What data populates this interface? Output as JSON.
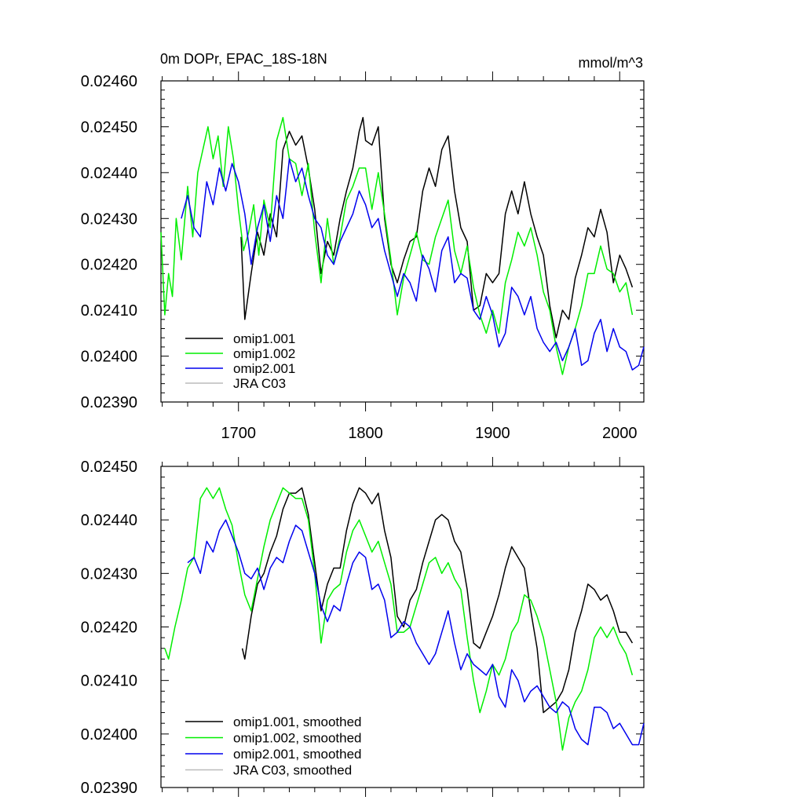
{
  "figure": {
    "title_left": "0m DOPr, EPAC_18S-18N",
    "title_right": "mmol/m^3"
  },
  "chart_data": [
    {
      "type": "line",
      "title": "0m DOPr, EPAC_18S-18N",
      "units": "mmol/m^3",
      "xlim": [
        1639,
        2019
      ],
      "ylim": [
        0.0239,
        0.0246
      ],
      "xticks": [
        1700,
        1800,
        1900,
        2000
      ],
      "xtick_labels": [
        "1700",
        "1800",
        "1900",
        "2000"
      ],
      "yticks": [
        0.0239,
        0.024,
        0.0241,
        0.0242,
        0.0243,
        0.0244,
        0.0245,
        0.0246
      ],
      "ytick_labels": [
        "0.02390",
        "0.02400",
        "0.02410",
        "0.02420",
        "0.02430",
        "0.02440",
        "0.02450",
        "0.02460"
      ],
      "legend_position": "bottom-left",
      "series": [
        {
          "name": "omip1.001",
          "color": "#000000",
          "x": [
            1702,
            1705,
            1710,
            1715,
            1720,
            1725,
            1730,
            1735,
            1740,
            1745,
            1750,
            1755,
            1760,
            1765,
            1770,
            1775,
            1780,
            1785,
            1790,
            1795,
            1798,
            1800,
            1805,
            1810,
            1815,
            1820,
            1825,
            1830,
            1835,
            1840,
            1845,
            1850,
            1855,
            1860,
            1865,
            1870,
            1875,
            1880,
            1885,
            1890,
            1895,
            1900,
            1905,
            1910,
            1915,
            1920,
            1925,
            1930,
            1935,
            1940,
            1945,
            1950,
            1955,
            1960,
            1965,
            1970,
            1975,
            1980,
            1985,
            1990,
            1995,
            2000,
            2005,
            2010
          ],
          "y": [
            0.02426,
            0.02408,
            0.02418,
            0.02427,
            0.02422,
            0.02431,
            0.02426,
            0.02445,
            0.02449,
            0.02446,
            0.02448,
            0.02441,
            0.02432,
            0.02418,
            0.02425,
            0.02422,
            0.0243,
            0.02436,
            0.02441,
            0.02449,
            0.02452,
            0.02447,
            0.02446,
            0.0245,
            0.0243,
            0.0242,
            0.02416,
            0.02421,
            0.02425,
            0.02426,
            0.02436,
            0.02441,
            0.02437,
            0.02445,
            0.02448,
            0.02436,
            0.02428,
            0.02425,
            0.0241,
            0.02411,
            0.02418,
            0.02416,
            0.02418,
            0.02431,
            0.02436,
            0.02431,
            0.02438,
            0.02431,
            0.02426,
            0.02422,
            0.02411,
            0.02404,
            0.0241,
            0.02408,
            0.02417,
            0.02422,
            0.02428,
            0.02426,
            0.02432,
            0.02427,
            0.02416,
            0.02422,
            0.02419,
            0.02415
          ]
        },
        {
          "name": "omip1.002",
          "color": "#00ee00",
          "x": [
            1639,
            1642,
            1645,
            1648,
            1651,
            1655,
            1660,
            1664,
            1668,
            1672,
            1676,
            1680,
            1684,
            1688,
            1692,
            1696,
            1700,
            1704,
            1708,
            1712,
            1716,
            1720,
            1725,
            1730,
            1735,
            1740,
            1745,
            1750,
            1755,
            1760,
            1765,
            1770,
            1775,
            1780,
            1785,
            1790,
            1795,
            1800,
            1805,
            1810,
            1815,
            1820,
            1825,
            1830,
            1835,
            1840,
            1845,
            1850,
            1855,
            1860,
            1865,
            1870,
            1875,
            1880,
            1885,
            1890,
            1895,
            1900,
            1905,
            1910,
            1915,
            1920,
            1925,
            1930,
            1935,
            1940,
            1945,
            1950,
            1955,
            1960,
            1965,
            1970,
            1975,
            1980,
            1985,
            1990,
            1995,
            2000,
            2005,
            2010
          ],
          "y": [
            0.02427,
            0.02409,
            0.02418,
            0.02413,
            0.0243,
            0.02421,
            0.02437,
            0.02426,
            0.0244,
            0.02445,
            0.0245,
            0.02443,
            0.02448,
            0.02437,
            0.0245,
            0.02443,
            0.02432,
            0.02423,
            0.02427,
            0.02433,
            0.02422,
            0.02434,
            0.02428,
            0.02447,
            0.02452,
            0.02443,
            0.02442,
            0.02435,
            0.02442,
            0.02427,
            0.02416,
            0.0243,
            0.0242,
            0.02426,
            0.02434,
            0.02437,
            0.02441,
            0.02441,
            0.02432,
            0.0244,
            0.02431,
            0.02421,
            0.02409,
            0.02417,
            0.02422,
            0.02427,
            0.02421,
            0.0242,
            0.02426,
            0.0243,
            0.02434,
            0.02423,
            0.02418,
            0.02424,
            0.02415,
            0.02409,
            0.02405,
            0.0241,
            0.02405,
            0.02416,
            0.02421,
            0.02427,
            0.02424,
            0.02428,
            0.02422,
            0.02414,
            0.0241,
            0.02402,
            0.02396,
            0.02402,
            0.02406,
            0.02411,
            0.02418,
            0.02418,
            0.02424,
            0.02419,
            0.02418,
            0.02414,
            0.02416,
            0.02409
          ]
        },
        {
          "name": "omip2.001",
          "color": "#0000ee",
          "x": [
            1655,
            1660,
            1665,
            1670,
            1675,
            1680,
            1685,
            1690,
            1695,
            1700,
            1705,
            1710,
            1715,
            1720,
            1725,
            1730,
            1735,
            1740,
            1745,
            1750,
            1755,
            1760,
            1765,
            1770,
            1775,
            1780,
            1785,
            1790,
            1795,
            1800,
            1805,
            1810,
            1815,
            1820,
            1825,
            1830,
            1835,
            1840,
            1845,
            1850,
            1855,
            1860,
            1865,
            1870,
            1875,
            1880,
            1885,
            1890,
            1895,
            1900,
            1905,
            1910,
            1915,
            1920,
            1925,
            1930,
            1935,
            1940,
            1945,
            1950,
            1955,
            1960,
            1965,
            1970,
            1975,
            1980,
            1985,
            1990,
            1995,
            2000,
            2005,
            2010,
            2015,
            2019
          ],
          "y": [
            0.0243,
            0.02435,
            0.02428,
            0.02426,
            0.02438,
            0.02433,
            0.02441,
            0.02436,
            0.02442,
            0.02438,
            0.02431,
            0.0242,
            0.02428,
            0.02433,
            0.02425,
            0.02435,
            0.0243,
            0.02443,
            0.02438,
            0.02441,
            0.02435,
            0.0243,
            0.02428,
            0.02422,
            0.0242,
            0.02425,
            0.02428,
            0.02431,
            0.02436,
            0.02433,
            0.02428,
            0.0243,
            0.02423,
            0.02418,
            0.02413,
            0.02418,
            0.02416,
            0.02412,
            0.02422,
            0.02419,
            0.02414,
            0.02423,
            0.02426,
            0.02416,
            0.02418,
            0.02417,
            0.0241,
            0.02408,
            0.02413,
            0.02409,
            0.02402,
            0.02405,
            0.02415,
            0.02413,
            0.02409,
            0.02413,
            0.02406,
            0.02403,
            0.02401,
            0.02403,
            0.02399,
            0.02402,
            0.02406,
            0.02398,
            0.02399,
            0.02405,
            0.02408,
            0.02401,
            0.02406,
            0.02402,
            0.02401,
            0.02397,
            0.02398,
            0.02402
          ]
        },
        {
          "name": "JRA C03",
          "color": "#bbbbbb",
          "x": [],
          "y": []
        }
      ]
    },
    {
      "type": "line",
      "xlim": [
        1639,
        2019
      ],
      "ylim": [
        0.0239,
        0.0245
      ],
      "yticks": [
        0.0239,
        0.024,
        0.0241,
        0.0242,
        0.0243,
        0.0244,
        0.0245
      ],
      "ytick_labels": [
        "0.02390",
        "0.02400",
        "0.02410",
        "0.02420",
        "0.02430",
        "0.02440",
        "0.02450"
      ],
      "legend_position": "bottom-left",
      "series": [
        {
          "name": "omip1.001, smoothed",
          "color": "#000000",
          "x": [
            1703,
            1705,
            1710,
            1715,
            1720,
            1725,
            1730,
            1735,
            1740,
            1745,
            1750,
            1755,
            1760,
            1765,
            1770,
            1775,
            1780,
            1785,
            1790,
            1795,
            1800,
            1805,
            1810,
            1815,
            1820,
            1825,
            1830,
            1835,
            1840,
            1845,
            1850,
            1855,
            1860,
            1865,
            1870,
            1875,
            1880,
            1885,
            1890,
            1895,
            1900,
            1905,
            1910,
            1915,
            1920,
            1925,
            1930,
            1935,
            1940,
            1945,
            1950,
            1955,
            1960,
            1965,
            1970,
            1975,
            1980,
            1985,
            1990,
            1995,
            2000,
            2005,
            2010
          ],
          "y": [
            0.02416,
            0.02414,
            0.02422,
            0.02428,
            0.0243,
            0.02434,
            0.02437,
            0.02442,
            0.02445,
            0.02445,
            0.02446,
            0.02441,
            0.02432,
            0.02423,
            0.02428,
            0.02431,
            0.02431,
            0.02438,
            0.02443,
            0.02446,
            0.02445,
            0.02443,
            0.02445,
            0.02438,
            0.02433,
            0.02422,
            0.0242,
            0.02425,
            0.02427,
            0.02432,
            0.02436,
            0.0244,
            0.02441,
            0.0244,
            0.02436,
            0.02434,
            0.02427,
            0.02417,
            0.02416,
            0.02419,
            0.02422,
            0.02426,
            0.02431,
            0.02435,
            0.02433,
            0.02431,
            0.02423,
            0.02416,
            0.02404,
            0.02405,
            0.02406,
            0.02408,
            0.02412,
            0.02419,
            0.02423,
            0.02428,
            0.02427,
            0.02425,
            0.02426,
            0.02423,
            0.02419,
            0.02419,
            0.02417
          ]
        },
        {
          "name": "omip1.002, smoothed",
          "color": "#00ee00",
          "x": [
            1642,
            1645,
            1650,
            1655,
            1660,
            1665,
            1670,
            1675,
            1680,
            1685,
            1690,
            1695,
            1700,
            1705,
            1710,
            1715,
            1720,
            1725,
            1730,
            1735,
            1740,
            1745,
            1750,
            1755,
            1760,
            1765,
            1770,
            1775,
            1780,
            1785,
            1790,
            1795,
            1800,
            1805,
            1810,
            1815,
            1820,
            1825,
            1830,
            1835,
            1840,
            1845,
            1850,
            1855,
            1860,
            1865,
            1870,
            1875,
            1880,
            1885,
            1890,
            1895,
            1900,
            1905,
            1910,
            1915,
            1920,
            1925,
            1930,
            1935,
            1940,
            1945,
            1950,
            1955,
            1960,
            1965,
            1970,
            1975,
            1980,
            1985,
            1990,
            1995,
            2000,
            2005,
            2010
          ],
          "y": [
            0.02416,
            0.02414,
            0.0242,
            0.02425,
            0.02431,
            0.02433,
            0.02444,
            0.02446,
            0.02444,
            0.02446,
            0.02442,
            0.02439,
            0.02432,
            0.02426,
            0.02423,
            0.02429,
            0.02435,
            0.0244,
            0.02443,
            0.02446,
            0.02445,
            0.02444,
            0.02444,
            0.0244,
            0.0243,
            0.02417,
            0.02425,
            0.02427,
            0.02428,
            0.02434,
            0.02438,
            0.0244,
            0.02437,
            0.02434,
            0.02436,
            0.02432,
            0.02428,
            0.02419,
            0.02419,
            0.0242,
            0.02424,
            0.02428,
            0.02432,
            0.02433,
            0.0243,
            0.02432,
            0.02429,
            0.02427,
            0.02418,
            0.0241,
            0.02404,
            0.02408,
            0.02413,
            0.02411,
            0.02414,
            0.02419,
            0.02421,
            0.02426,
            0.02425,
            0.02422,
            0.02418,
            0.02412,
            0.02406,
            0.02397,
            0.02403,
            0.02406,
            0.02408,
            0.02412,
            0.02418,
            0.0242,
            0.02418,
            0.0242,
            0.02417,
            0.02415,
            0.02411
          ]
        },
        {
          "name": "omip2.001, smoothed",
          "color": "#0000ee",
          "x": [
            1660,
            1665,
            1670,
            1675,
            1680,
            1685,
            1690,
            1695,
            1700,
            1705,
            1710,
            1715,
            1720,
            1725,
            1730,
            1735,
            1740,
            1745,
            1750,
            1755,
            1760,
            1765,
            1770,
            1775,
            1780,
            1785,
            1790,
            1795,
            1800,
            1805,
            1810,
            1815,
            1820,
            1825,
            1830,
            1835,
            1840,
            1845,
            1850,
            1855,
            1860,
            1865,
            1870,
            1875,
            1880,
            1885,
            1890,
            1895,
            1900,
            1905,
            1910,
            1915,
            1920,
            1925,
            1930,
            1935,
            1940,
            1945,
            1950,
            1955,
            1960,
            1965,
            1970,
            1975,
            1980,
            1985,
            1990,
            1995,
            2000,
            2005,
            2010,
            2015,
            2019
          ],
          "y": [
            0.02432,
            0.02433,
            0.0243,
            0.02436,
            0.02434,
            0.02438,
            0.0244,
            0.02437,
            0.02434,
            0.0243,
            0.02429,
            0.02431,
            0.02427,
            0.02431,
            0.02433,
            0.02432,
            0.02436,
            0.02439,
            0.02438,
            0.02434,
            0.0243,
            0.02424,
            0.02421,
            0.02424,
            0.02423,
            0.02428,
            0.02432,
            0.02434,
            0.02433,
            0.02427,
            0.02428,
            0.02425,
            0.02418,
            0.02419,
            0.02421,
            0.0242,
            0.02417,
            0.02415,
            0.02413,
            0.02415,
            0.02419,
            0.02423,
            0.02417,
            0.02412,
            0.02415,
            0.02413,
            0.02412,
            0.02411,
            0.02413,
            0.02407,
            0.02405,
            0.02412,
            0.0241,
            0.02406,
            0.02408,
            0.02409,
            0.02407,
            0.02405,
            0.02404,
            0.02406,
            0.02405,
            0.02401,
            0.02399,
            0.02398,
            0.02405,
            0.02405,
            0.02404,
            0.02401,
            0.02402,
            0.024,
            0.02398,
            0.02398,
            0.02402
          ]
        },
        {
          "name": "JRA C03, smoothed",
          "color": "#bbbbbb",
          "x": [],
          "y": []
        }
      ]
    }
  ]
}
